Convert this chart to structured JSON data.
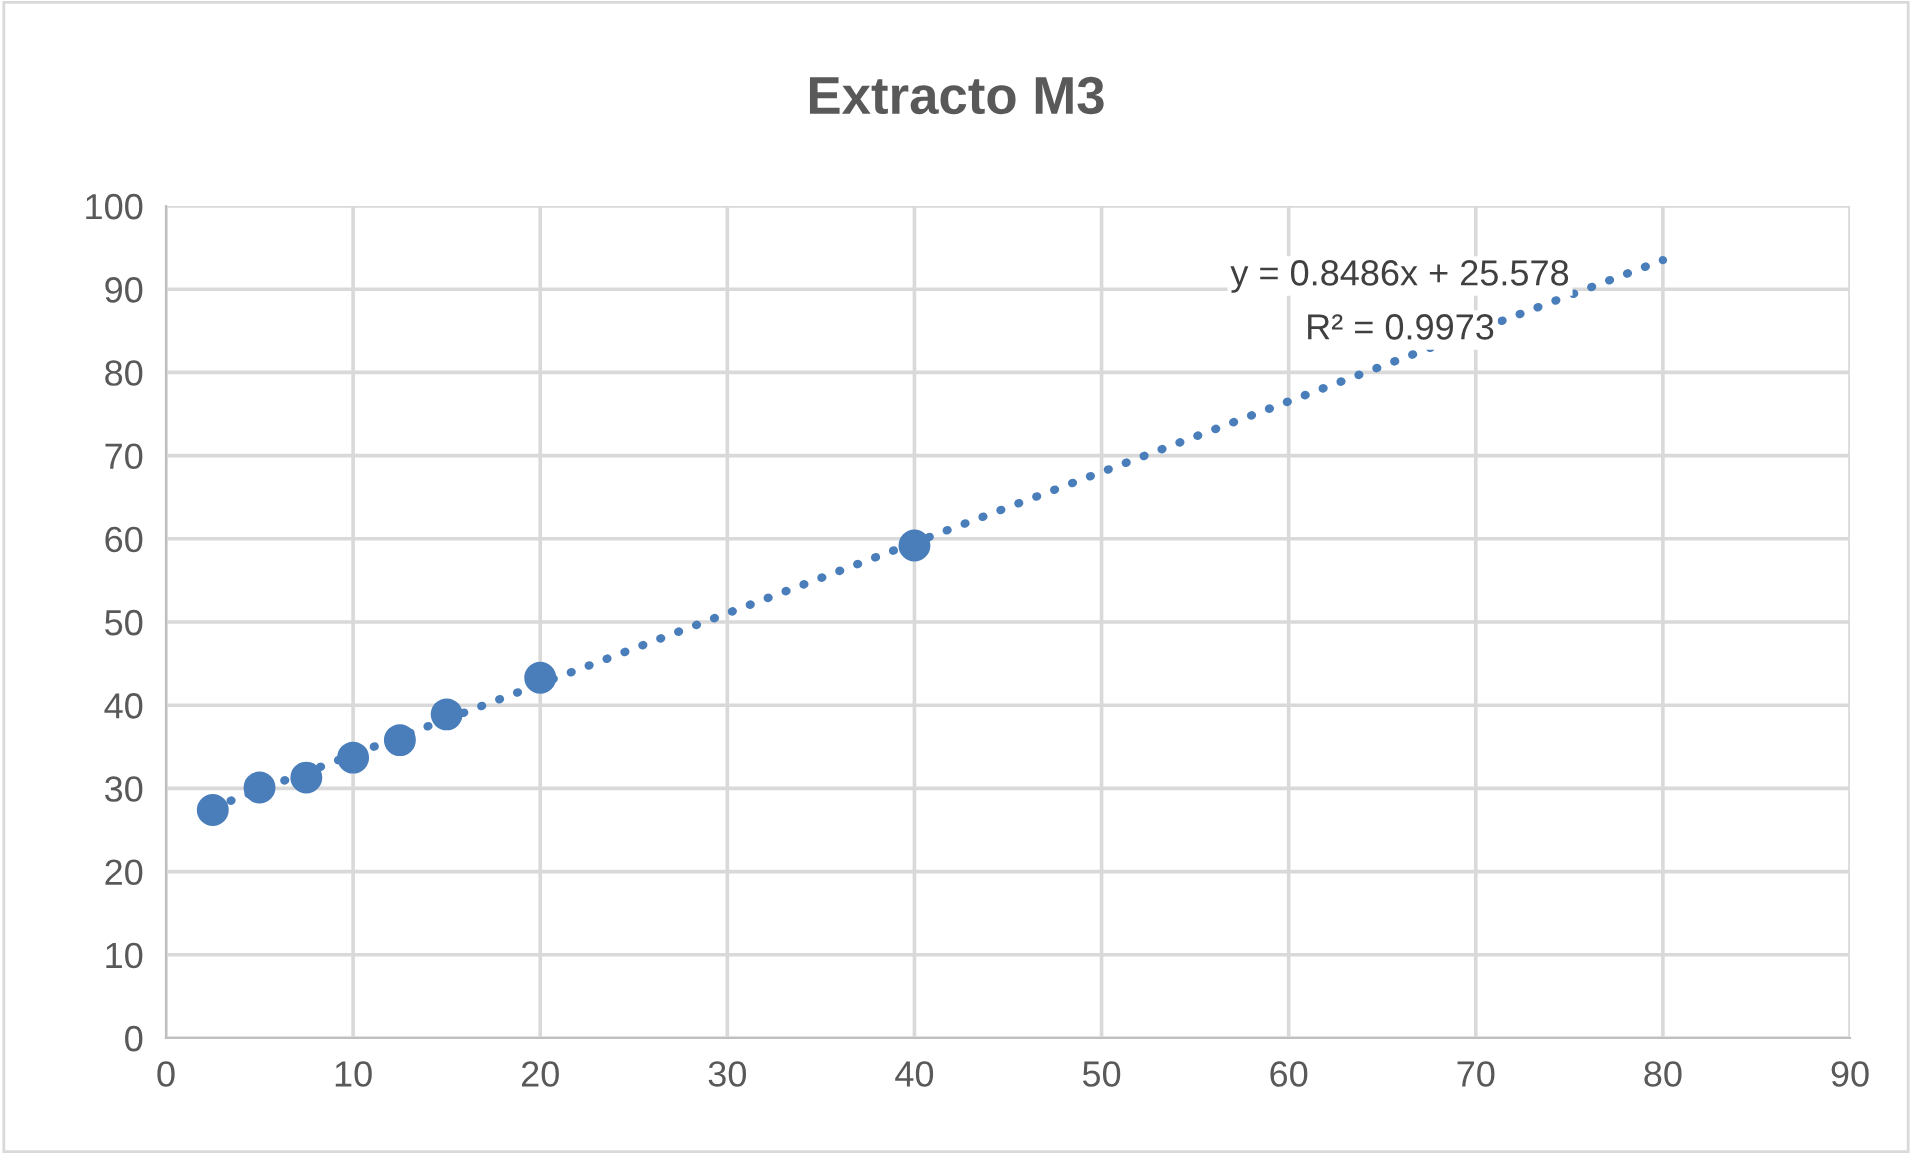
{
  "chart_data": {
    "type": "scatter",
    "title": "Extracto M3",
    "series": [
      {
        "color": "#4a7ebb",
        "x": [
          2.5,
          5,
          7.5,
          10,
          12.5,
          15,
          20,
          40
        ],
        "values": [
          27.4,
          30.1,
          31.3,
          33.7,
          35.8,
          38.9,
          43.3,
          59.2
        ],
        "marker": "circle"
      },
      {
        "type": "line",
        "color": "#4a7ebb",
        "x": [
          2.5,
          80
        ],
        "values": [
          27.7,
          93.5
        ],
        "line_style": "dotted",
        "marker": "none"
      }
    ],
    "annotations": [
      "y = 0.8486x + 25.578",
      "R² = 0.9973"
    ],
    "xlim": [
      0,
      90
    ],
    "xticks": [
      0,
      10,
      20,
      30,
      40,
      50,
      60,
      70,
      80,
      90
    ],
    "ylim": [
      0,
      100
    ],
    "yticks": [
      0,
      10,
      20,
      30,
      40,
      50,
      60,
      70,
      80,
      90,
      100
    ],
    "grid": true,
    "legend": false
  }
}
